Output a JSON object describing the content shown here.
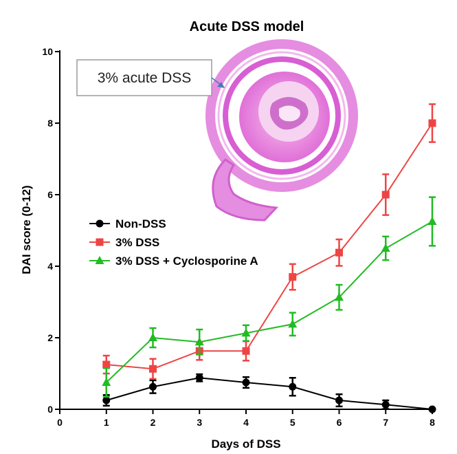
{
  "chart_data": {
    "type": "line",
    "title": "Acute DSS model",
    "xlabel": "Days of DSS",
    "ylabel": "DAI score (0-12)",
    "xlim": [
      0,
      8
    ],
    "ylim": [
      0,
      10
    ],
    "x_ticks": [
      0,
      1,
      2,
      3,
      4,
      5,
      6,
      7,
      8
    ],
    "y_ticks": [
      0,
      2,
      4,
      6,
      8,
      10
    ],
    "x_tick_labels": [
      "0",
      "1",
      "2",
      "3",
      "4",
      "5",
      "6",
      "7",
      "8"
    ],
    "y_tick_labels": [
      "0",
      "2",
      "4",
      "6",
      "8",
      "10"
    ],
    "grid": false,
    "legend_position": "center-left",
    "x": [
      1,
      2,
      3,
      4,
      5,
      6,
      7,
      8
    ],
    "series": [
      {
        "name": "Non-DSS",
        "color": "#000000",
        "marker": "circle",
        "values": [
          0.25,
          0.63,
          0.88,
          0.75,
          0.63,
          0.25,
          0.13,
          0.0
        ],
        "errors": [
          0.15,
          0.18,
          0.1,
          0.15,
          0.25,
          0.17,
          0.12,
          0.0
        ]
      },
      {
        "name": "3% DSS",
        "color": "#ee4444",
        "marker": "square",
        "values": [
          1.25,
          1.13,
          1.63,
          1.63,
          3.7,
          4.38,
          6.0,
          8.0
        ],
        "errors": [
          0.25,
          0.28,
          0.25,
          0.27,
          0.36,
          0.37,
          0.57,
          0.53
        ]
      },
      {
        "name": "3% DSS + Cyclosporine A",
        "color": "#22bb22",
        "marker": "triangle",
        "values": [
          0.75,
          2.0,
          1.88,
          2.13,
          2.38,
          3.13,
          4.5,
          5.25
        ],
        "errors": [
          0.4,
          0.27,
          0.35,
          0.22,
          0.32,
          0.35,
          0.33,
          0.68
        ]
      }
    ],
    "annotation": "3% acute DSS"
  }
}
